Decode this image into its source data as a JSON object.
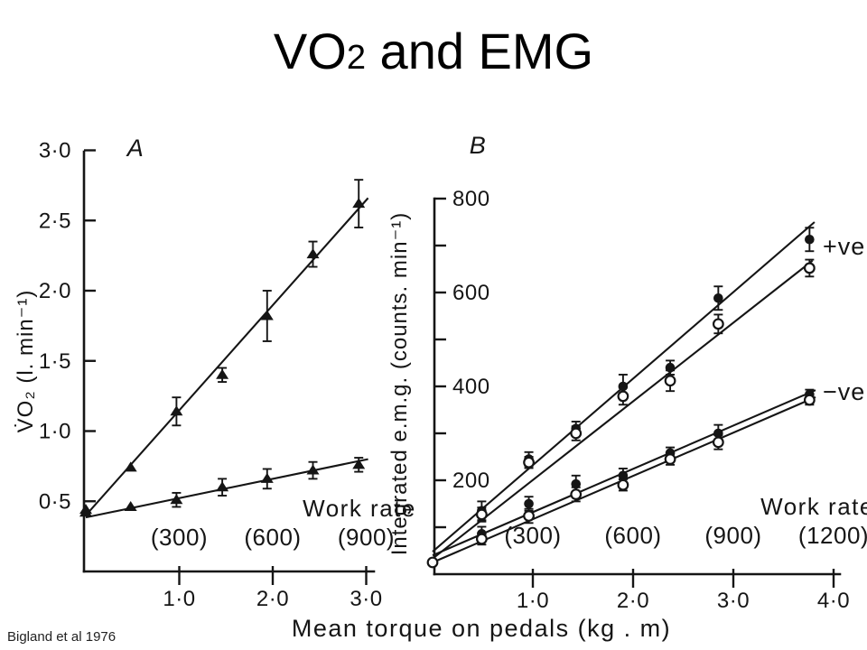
{
  "slide": {
    "title_main": "VO",
    "title_sub": "2",
    "title_rest": " and EMG",
    "citation": "Bigland et al 1976"
  },
  "xlabel_shared": "Mean torque on pedals (kg . m)",
  "chart_data": [
    {
      "id": "A",
      "type": "scatter",
      "panel_label": "A",
      "ylabel": "V̇O₂ (l. min⁻¹)",
      "xlabel": "Mean torque on pedals (kg . m)",
      "xlim": [
        0,
        3.1
      ],
      "ylim": [
        0,
        3.0
      ],
      "grid": false,
      "work_rate_title": "Work rate",
      "yticks": [
        {
          "v": 3.0,
          "label": "3·0"
        },
        {
          "v": 2.5,
          "label": "2·5"
        },
        {
          "v": 2.0,
          "label": "2·0"
        },
        {
          "v": 1.5,
          "label": "1·5"
        },
        {
          "v": 1.0,
          "label": "1·0"
        },
        {
          "v": 0.5,
          "label": "0·5"
        }
      ],
      "xticks": [
        {
          "v": 1.0,
          "label": "1·0",
          "work_rate": "(300)"
        },
        {
          "v": 2.0,
          "label": "2·0",
          "work_rate": "(600)"
        },
        {
          "v": 3.0,
          "label": "3·0",
          "work_rate": "(900)"
        }
      ],
      "series": [
        {
          "name": "vo2-positive-work",
          "marker": "triangle-filled",
          "label": "",
          "x": [
            0,
            0.48,
            0.97,
            1.46,
            1.94,
            2.43,
            2.92
          ],
          "y": [
            0.44,
            0.74,
            1.14,
            1.4,
            1.82,
            2.26,
            2.62
          ],
          "err": [
            0,
            0,
            0.1,
            0.05,
            0.18,
            0.09,
            0.17
          ],
          "line": [
            [
              0,
              0.4
            ],
            [
              3.02,
              2.66
            ]
          ]
        },
        {
          "name": "vo2-negative-work",
          "marker": "triangle-filled",
          "label": "",
          "x": [
            0,
            0.48,
            0.97,
            1.46,
            1.94,
            2.43,
            2.92
          ],
          "y": [
            0.42,
            0.46,
            0.51,
            0.6,
            0.66,
            0.72,
            0.76
          ],
          "err": [
            0,
            0,
            0.05,
            0.06,
            0.07,
            0.06,
            0.05
          ],
          "line": [
            [
              0,
              0.385
            ],
            [
              3.02,
              0.8
            ]
          ]
        }
      ]
    },
    {
      "id": "B",
      "type": "scatter",
      "panel_label": "B",
      "ylabel": "Integrated e.m.g. (counts. min⁻¹)",
      "xlabel": "Mean torque on pedals (kg . m)",
      "xlim": [
        0,
        4.1
      ],
      "ylim": [
        0,
        800
      ],
      "grid": false,
      "work_rate_title": "Work rate",
      "yticks": [
        {
          "v": 800,
          "label": "800"
        },
        {
          "v": 600,
          "label": "600"
        },
        {
          "v": 400,
          "label": "400"
        },
        {
          "v": 200,
          "label": "200"
        }
      ],
      "xticks": [
        {
          "v": 1.0,
          "label": "1·0",
          "work_rate": "(300)"
        },
        {
          "v": 2.0,
          "label": "2·0",
          "work_rate": "(600)"
        },
        {
          "v": 3.0,
          "label": "3·0",
          "work_rate": "(900)"
        },
        {
          "v": 4.0,
          "label": "4·0",
          "work_rate": "(1200)"
        }
      ],
      "series": [
        {
          "name": "emg-positive-filled",
          "marker": "circle-filled",
          "label": "+ve",
          "x": [
            0.49,
            0.96,
            1.43,
            1.9,
            2.37,
            2.85,
            3.76
          ],
          "y": [
            135,
            245,
            310,
            400,
            440,
            588,
            713
          ],
          "err": [
            20,
            15,
            15,
            25,
            15,
            25,
            25
          ],
          "line": [
            [
              0,
              48
            ],
            [
              3.81,
              750
            ]
          ]
        },
        {
          "name": "emg-positive-open",
          "marker": "circle-open",
          "label": "",
          "x": [
            0.49,
            0.96,
            1.43,
            1.9,
            2.37,
            2.85,
            3.76
          ],
          "y": [
            127,
            238,
            300,
            379,
            412,
            533,
            652
          ],
          "err": [
            15,
            12,
            15,
            18,
            22,
            20,
            18
          ],
          "line": [
            [
              0,
              33
            ],
            [
              3.79,
              668
            ]
          ]
        },
        {
          "name": "emg-negative-filled",
          "marker": "circle-filled",
          "label": "−ve",
          "x": [
            0.49,
            0.96,
            1.43,
            1.9,
            2.37,
            2.85,
            3.76
          ],
          "y": [
            86,
            150,
            192,
            210,
            258,
            300,
            383
          ],
          "err": [
            15,
            15,
            18,
            15,
            12,
            18,
            10
          ],
          "line": [
            [
              0,
              40
            ],
            [
              3.82,
              392
            ]
          ]
        },
        {
          "name": "emg-negative-open",
          "marker": "circle-open",
          "label": "",
          "x": [
            0,
            0.49,
            0.96,
            1.43,
            1.9,
            2.37,
            2.85,
            3.76
          ],
          "y": [
            25,
            75,
            124,
            170,
            190,
            245,
            281,
            371
          ],
          "err": [
            0,
            12,
            15,
            15,
            12,
            12,
            15,
            10
          ],
          "line": [
            [
              0,
              25
            ],
            [
              3.82,
              377
            ]
          ]
        }
      ]
    }
  ]
}
